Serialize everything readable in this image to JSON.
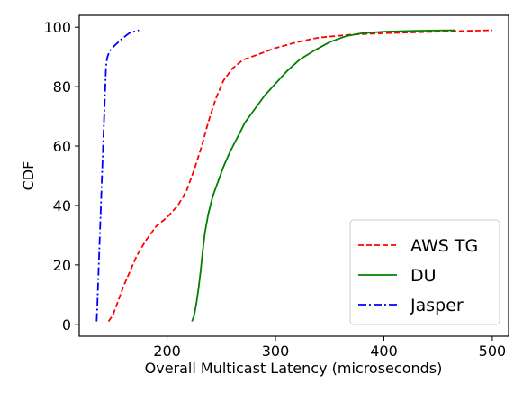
{
  "chart_data": {
    "type": "line",
    "xlabel": "Overall Multicast Latency (microseconds)",
    "ylabel": "CDF",
    "xlim": [
      119,
      515
    ],
    "ylim": [
      -4,
      104
    ],
    "xticks": [
      200,
      300,
      400,
      500
    ],
    "yticks": [
      0,
      20,
      40,
      60,
      80,
      100
    ],
    "grid": false,
    "legend_position": "lower-right",
    "series": [
      {
        "name": "AWS TG",
        "color": "#ff0000",
        "dash": "dashed",
        "points": [
          [
            146,
            1
          ],
          [
            150,
            3
          ],
          [
            155,
            8
          ],
          [
            160,
            13
          ],
          [
            166,
            18
          ],
          [
            172,
            23
          ],
          [
            180,
            28
          ],
          [
            190,
            33
          ],
          [
            200,
            36
          ],
          [
            210,
            40
          ],
          [
            218,
            45
          ],
          [
            225,
            52
          ],
          [
            232,
            60
          ],
          [
            238,
            68
          ],
          [
            245,
            76
          ],
          [
            252,
            82
          ],
          [
            260,
            86
          ],
          [
            270,
            89
          ],
          [
            285,
            91
          ],
          [
            300,
            93
          ],
          [
            320,
            95
          ],
          [
            340,
            96.5
          ],
          [
            370,
            97.5
          ],
          [
            400,
            98
          ],
          [
            450,
            98.5
          ],
          [
            500,
            99
          ]
        ]
      },
      {
        "name": "DU",
        "color": "#008000",
        "dash": "solid",
        "points": [
          [
            223,
            1
          ],
          [
            225,
            3
          ],
          [
            227,
            7
          ],
          [
            229,
            12
          ],
          [
            231,
            18
          ],
          [
            233,
            25
          ],
          [
            235,
            31
          ],
          [
            238,
            37
          ],
          [
            242,
            43
          ],
          [
            247,
            48
          ],
          [
            252,
            53
          ],
          [
            258,
            58
          ],
          [
            265,
            63
          ],
          [
            272,
            68
          ],
          [
            280,
            72
          ],
          [
            290,
            77
          ],
          [
            300,
            81
          ],
          [
            310,
            85
          ],
          [
            322,
            89
          ],
          [
            335,
            92
          ],
          [
            350,
            95
          ],
          [
            365,
            97
          ],
          [
            380,
            98
          ],
          [
            400,
            98.5
          ],
          [
            430,
            98.8
          ],
          [
            466,
            99
          ]
        ]
      },
      {
        "name": "Jasper",
        "color": "#0000ff",
        "dash": "dashdot",
        "points": [
          [
            135,
            1
          ],
          [
            135.5,
            5
          ],
          [
            136,
            10
          ],
          [
            136.5,
            15
          ],
          [
            137,
            20
          ],
          [
            137.5,
            25
          ],
          [
            138,
            30
          ],
          [
            138.5,
            35
          ],
          [
            139,
            40
          ],
          [
            139.5,
            45
          ],
          [
            140,
            50
          ],
          [
            140.5,
            55
          ],
          [
            141,
            60
          ],
          [
            141.5,
            65
          ],
          [
            142,
            70
          ],
          [
            142.5,
            75
          ],
          [
            143,
            80
          ],
          [
            143.5,
            85
          ],
          [
            144,
            88
          ],
          [
            145,
            90
          ],
          [
            147,
            92
          ],
          [
            152,
            94
          ],
          [
            158,
            96
          ],
          [
            165,
            98
          ],
          [
            174,
            99
          ]
        ]
      }
    ]
  }
}
